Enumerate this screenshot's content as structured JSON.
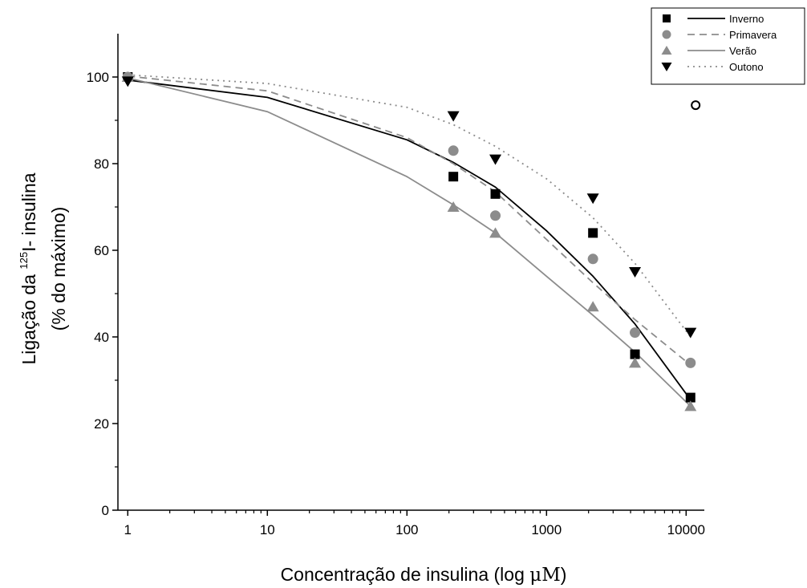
{
  "chart_data": {
    "type": "scatter",
    "title": "",
    "xlabel": "Concentração de insulina (log μM)",
    "xlabel_prefix": "Concentração de insulina (log ",
    "xlabel_unit": "μM",
    "xlabel_suffix": ")",
    "ylabel_line1_prefix": "Ligação da ",
    "ylabel_line1_superscript": "125",
    "ylabel_line1_suffix": "I- insulina",
    "ylabel_line2": "(% do máximo)",
    "x_scale": "log",
    "xlim": [
      0.85,
      13500
    ],
    "ylim": [
      0,
      110
    ],
    "x_ticks": [
      1,
      10,
      100,
      1000,
      10000
    ],
    "x_tick_labels": [
      "1",
      "10",
      "100",
      "1000",
      "10000"
    ],
    "y_ticks": [
      0,
      20,
      40,
      60,
      80,
      100
    ],
    "y_tick_labels": [
      "0",
      "20",
      "40",
      "60",
      "80",
      "100"
    ],
    "grid": false,
    "legend_position": "top-right",
    "series": [
      {
        "name": "Inverno",
        "marker": "square",
        "color": "#000000",
        "line_style": "solid",
        "x": [
          1,
          215,
          430,
          2150,
          4300,
          10750
        ],
        "y": [
          100,
          77,
          73,
          64,
          36,
          26
        ],
        "fit_x": [
          1,
          10,
          100,
          215,
          430,
          1000,
          2150,
          4300,
          10750
        ],
        "fit_y": [
          99.3,
          95.3,
          85.5,
          80.3,
          74.6,
          64.5,
          54,
          43,
          25.5
        ]
      },
      {
        "name": "Primavera",
        "marker": "circle",
        "color": "#8c8c8c",
        "line_style": "dashed",
        "x": [
          1,
          215,
          430,
          2150,
          4300,
          10750
        ],
        "y": [
          100,
          83,
          68,
          58,
          41,
          34
        ],
        "fit_x": [
          1,
          10,
          100,
          215,
          430,
          1000,
          2150,
          4300,
          10750
        ],
        "fit_y": [
          100.2,
          96.8,
          86,
          80,
          73.5,
          62.5,
          52.5,
          44,
          33.5
        ]
      },
      {
        "name": "Verão",
        "marker": "triangle-up",
        "color": "#8c8c8c",
        "line_style": "solid",
        "x": [
          1,
          215,
          430,
          2150,
          4300,
          10750
        ],
        "y": [
          100,
          70,
          64,
          47,
          34,
          24
        ],
        "fit_x": [
          1,
          10,
          100,
          215,
          430,
          1000,
          2150,
          4300,
          10750
        ],
        "fit_y": [
          99.8,
          92,
          77,
          70.5,
          64,
          54,
          45,
          36.5,
          24
        ]
      },
      {
        "name": "Outono",
        "marker": "triangle-down",
        "color": "#000000",
        "line_style": "dotted",
        "line_color": "#8c8c8c",
        "x": [
          1,
          215,
          430,
          2150,
          4300,
          10750
        ],
        "y": [
          99,
          91,
          81,
          72,
          55,
          41
        ],
        "fit_x": [
          1,
          10,
          100,
          215,
          430,
          1000,
          2150,
          4300,
          10750
        ],
        "fit_y": [
          100.5,
          98.5,
          93,
          89,
          84,
          76.5,
          67.5,
          57,
          40
        ]
      }
    ],
    "annotations": [
      {
        "type": "open-circle",
        "x": 11700,
        "y": 93.5
      }
    ]
  }
}
